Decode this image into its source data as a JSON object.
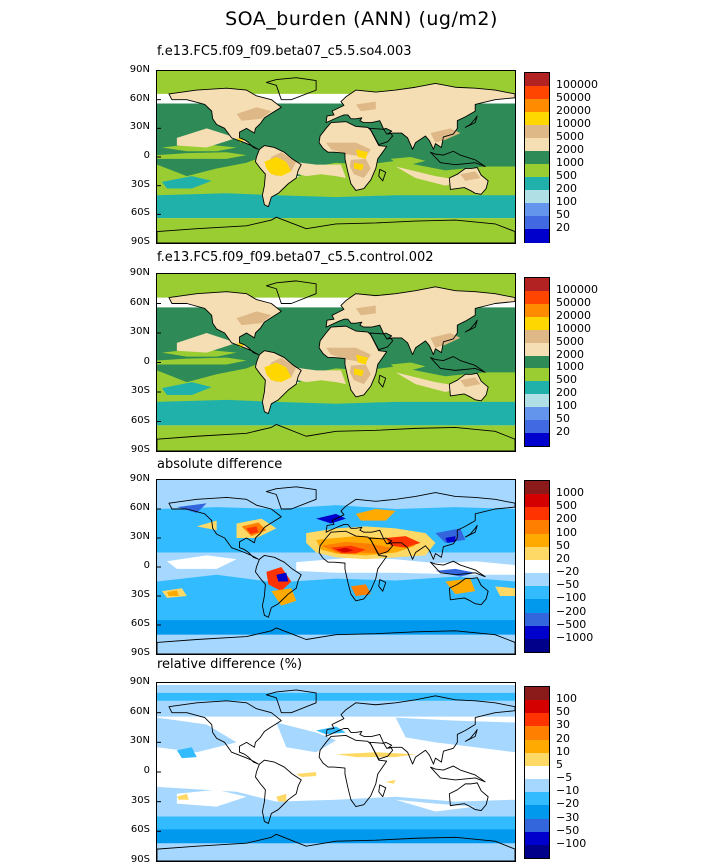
{
  "title": "SOA_burden (ANN) (ug/m2)",
  "lat_ticks": [
    "90N",
    "60N",
    "30N",
    "0",
    "30S",
    "60S",
    "90S"
  ],
  "chart_data": [
    {
      "type": "heatmap",
      "title": "f.e13.FC5.f09_f09.beta07_c5.5.so4.003",
      "levels": [
        "100000",
        "50000",
        "20000",
        "10000",
        "5000",
        "2000",
        "1000",
        "500",
        "200",
        "100",
        "50",
        "20"
      ],
      "colors": [
        "#b22222",
        "#ff4500",
        "#ff8c00",
        "#ffd700",
        "#deb887",
        "#f5deb3",
        "#2e8b57",
        "#9acd32",
        "#20b2aa",
        "#b0e0e6",
        "#6495ed",
        "#4169e1",
        "#0000cd"
      ],
      "ylabel_ticks": [
        "90N",
        "60N",
        "30N",
        "0",
        "30S",
        "60S",
        "90S"
      ]
    },
    {
      "type": "heatmap",
      "title": "f.e13.FC5.f09_f09.beta07_c5.5.control.002",
      "levels": [
        "100000",
        "50000",
        "20000",
        "10000",
        "5000",
        "2000",
        "1000",
        "500",
        "200",
        "100",
        "50",
        "20"
      ],
      "colors": [
        "#b22222",
        "#ff4500",
        "#ff8c00",
        "#ffd700",
        "#deb887",
        "#f5deb3",
        "#2e8b57",
        "#9acd32",
        "#20b2aa",
        "#b0e0e6",
        "#6495ed",
        "#4169e1",
        "#0000cd"
      ],
      "ylabel_ticks": [
        "90N",
        "60N",
        "30N",
        "0",
        "30S",
        "60S",
        "90S"
      ]
    },
    {
      "type": "heatmap",
      "title": "absolute difference",
      "levels": [
        "1000",
        "500",
        "200",
        "100",
        "50",
        "20",
        "−20",
        "−50",
        "−100",
        "−200",
        "−500",
        "−1000"
      ],
      "colors": [
        "#8b1a1a",
        "#d40000",
        "#ff3300",
        "#ff7f00",
        "#ffaa00",
        "#ffd966",
        "#ffffff",
        "#a6d8ff",
        "#33bbff",
        "#0099ee",
        "#3366dd",
        "#0000cc",
        "#00008b"
      ],
      "ylabel_ticks": [
        "90N",
        "60N",
        "30N",
        "0",
        "30S",
        "60S",
        "90S"
      ]
    },
    {
      "type": "heatmap",
      "title": "relative difference (%)",
      "levels": [
        "100",
        "50",
        "30",
        "20",
        "10",
        "5",
        "−5",
        "−10",
        "−20",
        "−30",
        "−50",
        "−100"
      ],
      "colors": [
        "#8b1a1a",
        "#d40000",
        "#ff3300",
        "#ff7f00",
        "#ffaa00",
        "#ffd966",
        "#ffffff",
        "#a6d8ff",
        "#33bbff",
        "#0099ee",
        "#3366dd",
        "#0000cc",
        "#00008b"
      ],
      "ylabel_ticks": [
        "90N",
        "60N",
        "30N",
        "0",
        "30S",
        "60S",
        "90S"
      ]
    }
  ]
}
